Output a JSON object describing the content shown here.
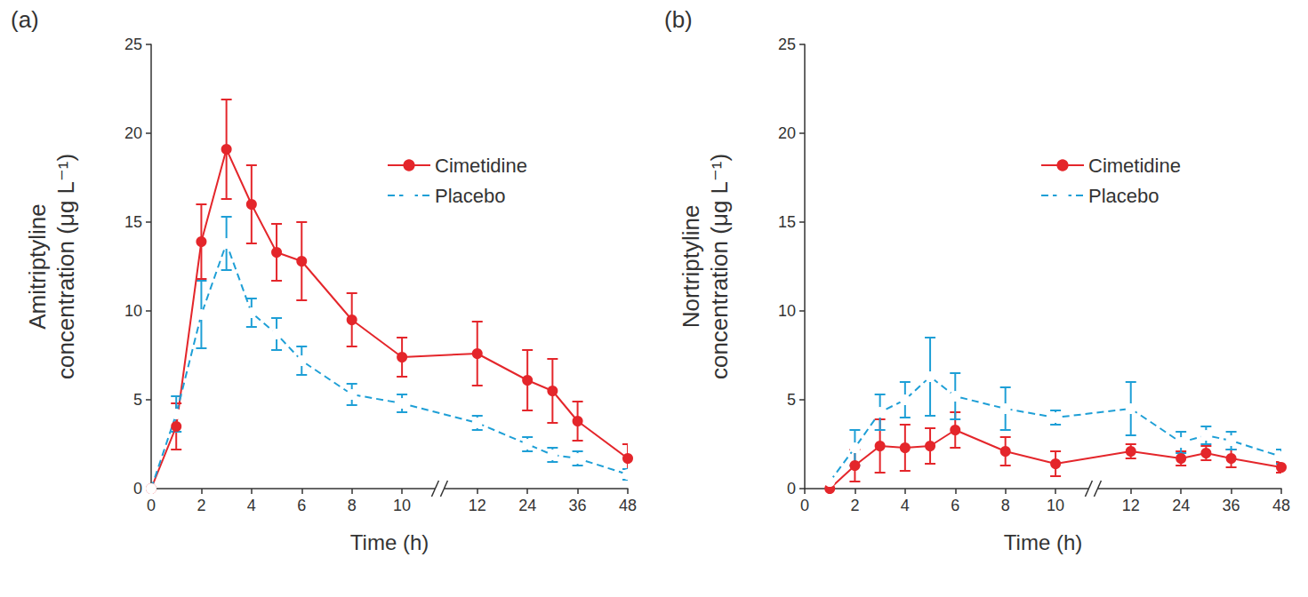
{
  "chart_data": [
    {
      "type": "line",
      "title": "(a)",
      "x_label": "Time (h)",
      "y_label": "Amitriptyline\nconcentration (μg L⁻¹)",
      "categories": [
        "0",
        null,
        "2",
        null,
        "4",
        null,
        "6",
        null,
        "8",
        null,
        "10",
        null,
        null,
        "12",
        null,
        "24",
        null,
        "36",
        null,
        "48"
      ],
      "ylim": [
        0,
        25
      ],
      "yticks": [
        0,
        5,
        10,
        15,
        20,
        25
      ],
      "grid": false,
      "legend": "upper right",
      "series": [
        {
          "name": "Cimetidine",
          "color": "#e4262b",
          "marker": "circle",
          "line_style": "solid",
          "values": [
            0,
            3.5,
            13.9,
            19.1,
            16.0,
            13.3,
            12.8,
            null,
            9.5,
            null,
            7.4,
            null,
            null,
            7.6,
            null,
            6.1,
            5.5,
            3.8,
            null,
            1.7
          ],
          "errors": [
            null,
            1.3,
            2.1,
            2.8,
            2.2,
            1.6,
            2.2,
            null,
            1.5,
            null,
            1.1,
            null,
            null,
            1.8,
            null,
            1.7,
            1.8,
            1.1,
            null,
            0.8
          ]
        },
        {
          "name": "Placebo",
          "color": "#1e9fd6",
          "marker": "open_circle",
          "line_style": "dashed",
          "values": [
            0,
            4.2,
            9.8,
            13.8,
            9.9,
            8.7,
            7.2,
            null,
            5.3,
            null,
            4.8,
            null,
            null,
            3.7,
            null,
            2.5,
            1.9,
            1.7,
            null,
            0.8
          ],
          "errors": [
            null,
            1.0,
            1.9,
            1.5,
            0.8,
            0.9,
            0.8,
            null,
            0.6,
            null,
            0.5,
            null,
            null,
            0.4,
            null,
            0.4,
            0.4,
            0.4,
            null,
            0.3
          ]
        }
      ]
    },
    {
      "type": "line",
      "title": "(b)",
      "x_label": "Time (h)",
      "y_label": "Nortriptyline\nconcentration (μg L⁻¹)",
      "categories": [
        "0",
        null,
        "2",
        null,
        "4",
        null,
        "6",
        null,
        "8",
        null,
        "10",
        null,
        null,
        "12",
        null,
        "24",
        null,
        "36",
        null,
        "48"
      ],
      "ylim": [
        0,
        25
      ],
      "yticks": [
        0,
        5,
        10,
        15,
        20,
        25
      ],
      "grid": false,
      "legend": "upper right",
      "series": [
        {
          "name": "Cimetidine",
          "color": "#e4262b",
          "marker": "circle",
          "line_style": "solid",
          "values": [
            null,
            0,
            1.3,
            2.4,
            2.3,
            2.4,
            3.3,
            null,
            2.1,
            null,
            1.4,
            null,
            null,
            2.1,
            null,
            1.7,
            2.0,
            1.7,
            null,
            1.2
          ],
          "errors": [
            null,
            null,
            0.9,
            1.5,
            1.3,
            1.0,
            1.0,
            null,
            0.8,
            null,
            0.7,
            null,
            null,
            0.4,
            null,
            0.4,
            0.4,
            0.5,
            null,
            0.3
          ]
        },
        {
          "name": "Placebo",
          "color": "#1e9fd6",
          "marker": "open_circle",
          "line_style": "dashed",
          "values": [
            null,
            0.4,
            2.3,
            4.3,
            5.0,
            6.3,
            5.2,
            null,
            4.5,
            null,
            4.0,
            null,
            null,
            4.5,
            null,
            2.6,
            3.0,
            2.7,
            null,
            1.8
          ],
          "errors": [
            null,
            null,
            1.0,
            1.0,
            1.0,
            2.2,
            1.3,
            null,
            1.2,
            null,
            0.4,
            null,
            null,
            1.5,
            null,
            0.6,
            0.5,
            0.5,
            null,
            0.4
          ]
        }
      ]
    }
  ]
}
